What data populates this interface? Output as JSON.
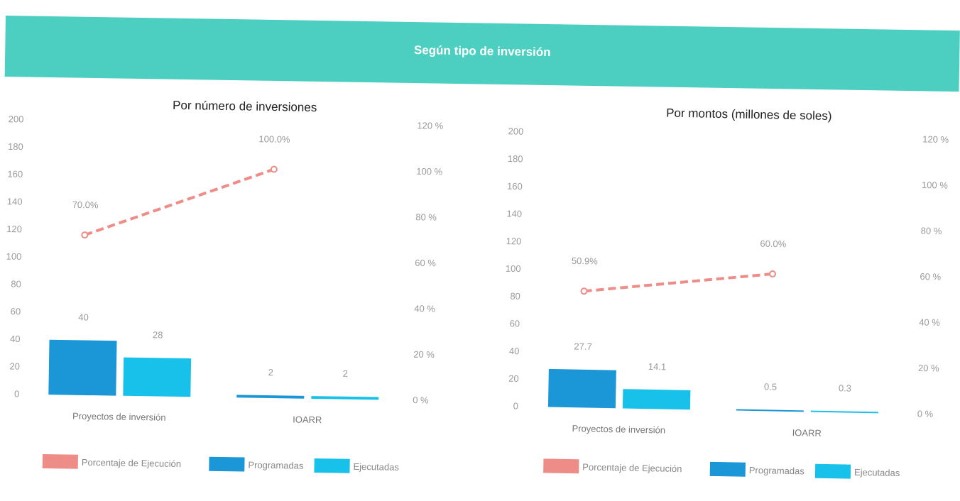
{
  "header": {
    "title": "Según tipo de inversión"
  },
  "colors": {
    "banner": "#4ccfc0",
    "programadas": "#1b96d6",
    "ejecutadas": "#18c1ea",
    "porcentaje": "#ee8c87"
  },
  "chart_data": [
    {
      "type": "bar",
      "title": "Por número de inversiones",
      "categories": [
        "Proyectos de inversión",
        "IOARR"
      ],
      "series": [
        {
          "name": "Programadas",
          "values": [
            40,
            2
          ]
        },
        {
          "name": "Ejecutadas",
          "values": [
            28,
            2
          ]
        }
      ],
      "line": {
        "name": "Porcentaje de Ejecución",
        "values": [
          70.0,
          100.0
        ],
        "labels": [
          "70.0%",
          "100.0%"
        ]
      },
      "ylim": [
        0,
        200
      ],
      "yticks": [
        "0",
        "20",
        "40",
        "60",
        "80",
        "100",
        "120",
        "140",
        "160",
        "180",
        "200"
      ],
      "y2lim": [
        0,
        120
      ],
      "y2ticks": [
        "0 %",
        "20 %",
        "40 %",
        "60 %",
        "80 %",
        "100 %",
        "120 %"
      ],
      "legend": "bottom",
      "grid": false
    },
    {
      "type": "bar",
      "title": "Por montos (millones de soles)",
      "categories": [
        "Proyectos de inversión",
        "IOARR"
      ],
      "series": [
        {
          "name": "Programadas",
          "values": [
            27.7,
            0.5
          ]
        },
        {
          "name": "Ejecutadas",
          "values": [
            14.1,
            0.3
          ]
        }
      ],
      "line": {
        "name": "Porcentaje de Ejecución",
        "values": [
          50.9,
          60.0
        ],
        "labels": [
          "50.9%",
          "60.0%"
        ]
      },
      "ylim": [
        0,
        200
      ],
      "yticks": [
        "0",
        "20",
        "40",
        "60",
        "80",
        "100",
        "120",
        "140",
        "160",
        "180",
        "200"
      ],
      "y2lim": [
        0,
        120
      ],
      "y2ticks": [
        "0 %",
        "20 %",
        "40 %",
        "60 %",
        "80 %",
        "100 %",
        "120 %"
      ],
      "legend": "bottom",
      "grid": false
    }
  ]
}
